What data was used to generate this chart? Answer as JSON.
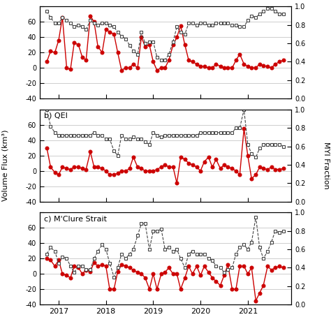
{
  "panel_a_label": "b) QEI",
  "panel_b_label": "c) M'Clure Strait",
  "ylabel_left": "Volume Flux (km³)",
  "ylabel_right": "MYI Fraction",
  "x_ticks": [
    2017,
    2018,
    2019,
    2020,
    2021
  ],
  "ylim_ab": [
    -40,
    80
  ],
  "ylim_c": [
    -40,
    80
  ],
  "right_ylim": [
    0.0,
    1.0
  ],
  "panel0_flux_x": [
    2016.75,
    2016.83,
    2016.92,
    2017.0,
    2017.08,
    2017.17,
    2017.25,
    2017.33,
    2017.42,
    2017.5,
    2017.58,
    2017.67,
    2017.75,
    2017.83,
    2017.92,
    2018.0,
    2018.08,
    2018.17,
    2018.25,
    2018.33,
    2018.42,
    2018.5,
    2018.58,
    2018.67,
    2018.75,
    2018.83,
    2018.92,
    2019.0,
    2019.08,
    2019.17,
    2019.25,
    2019.33,
    2019.42,
    2019.5,
    2019.58,
    2019.67,
    2019.75,
    2019.83,
    2019.92,
    2020.0,
    2020.08,
    2020.17,
    2020.25,
    2020.33,
    2020.42,
    2020.5,
    2020.58,
    2020.67,
    2020.75,
    2020.83,
    2020.92,
    2021.0,
    2021.08,
    2021.17,
    2021.25,
    2021.33,
    2021.42,
    2021.5,
    2021.58,
    2021.67,
    2021.75
  ],
  "panel0_flux_y": [
    8,
    22,
    20,
    36,
    66,
    0,
    -2,
    33,
    30,
    14,
    10,
    68,
    60,
    28,
    20,
    50,
    47,
    44,
    20,
    -3,
    0,
    0,
    5,
    0,
    40,
    28,
    30,
    8,
    -3,
    0,
    0,
    10,
    30,
    40,
    55,
    30,
    10,
    8,
    5,
    2,
    2,
    0,
    0,
    5,
    2,
    0,
    0,
    0,
    10,
    18,
    5,
    2,
    0,
    0,
    5,
    3,
    2,
    0,
    5,
    8,
    10
  ],
  "panel0_myi_x": [
    2016.75,
    2016.83,
    2016.92,
    2017.0,
    2017.08,
    2017.17,
    2017.25,
    2017.33,
    2017.42,
    2017.5,
    2017.58,
    2017.67,
    2017.75,
    2017.83,
    2017.92,
    2018.0,
    2018.08,
    2018.17,
    2018.25,
    2018.33,
    2018.42,
    2018.5,
    2018.58,
    2018.67,
    2018.75,
    2018.83,
    2018.92,
    2019.0,
    2019.08,
    2019.17,
    2019.25,
    2019.33,
    2019.42,
    2019.5,
    2019.58,
    2019.67,
    2019.75,
    2019.83,
    2019.92,
    2020.0,
    2020.08,
    2020.17,
    2020.25,
    2020.33,
    2020.42,
    2020.5,
    2020.58,
    2020.67,
    2020.75,
    2020.83,
    2020.92,
    2021.0,
    2021.08,
    2021.17,
    2021.25,
    2021.33,
    2021.42,
    2021.5,
    2021.58,
    2021.67,
    2021.75
  ],
  "panel0_myi_y": [
    0.95,
    0.88,
    0.82,
    0.82,
    0.88,
    0.85,
    0.82,
    0.78,
    0.8,
    0.78,
    0.75,
    0.85,
    0.82,
    0.8,
    0.82,
    0.82,
    0.8,
    0.78,
    0.72,
    0.68,
    0.65,
    0.58,
    0.52,
    0.48,
    0.72,
    0.6,
    0.62,
    0.62,
    0.45,
    0.42,
    0.42,
    0.48,
    0.62,
    0.78,
    0.72,
    0.7,
    0.82,
    0.82,
    0.8,
    0.82,
    0.82,
    0.8,
    0.8,
    0.82,
    0.82,
    0.82,
    0.82,
    0.8,
    0.8,
    0.78,
    0.78,
    0.85,
    0.9,
    0.88,
    0.92,
    0.95,
    0.98,
    0.98,
    0.95,
    0.92,
    0.92
  ],
  "panel1_flux_x": [
    2016.75,
    2016.83,
    2016.92,
    2017.0,
    2017.08,
    2017.17,
    2017.25,
    2017.33,
    2017.42,
    2017.5,
    2017.58,
    2017.67,
    2017.75,
    2017.83,
    2017.92,
    2018.0,
    2018.08,
    2018.17,
    2018.25,
    2018.33,
    2018.42,
    2018.5,
    2018.58,
    2018.67,
    2018.75,
    2018.83,
    2018.92,
    2019.0,
    2019.08,
    2019.17,
    2019.25,
    2019.33,
    2019.42,
    2019.5,
    2019.58,
    2019.67,
    2019.75,
    2019.83,
    2019.92,
    2020.0,
    2020.08,
    2020.17,
    2020.25,
    2020.33,
    2020.42,
    2020.5,
    2020.58,
    2020.67,
    2020.75,
    2020.83,
    2020.92,
    2021.0,
    2021.08,
    2021.17,
    2021.25,
    2021.33,
    2021.42,
    2021.5,
    2021.58,
    2021.67,
    2021.75
  ],
  "panel1_flux_y": [
    30,
    5,
    -2,
    -5,
    5,
    3,
    2,
    5,
    5,
    3,
    2,
    25,
    5,
    5,
    3,
    0,
    -5,
    -5,
    -3,
    0,
    0,
    3,
    18,
    5,
    3,
    0,
    0,
    0,
    2,
    5,
    8,
    5,
    5,
    -16,
    18,
    15,
    10,
    8,
    5,
    0,
    12,
    18,
    5,
    15,
    3,
    8,
    5,
    3,
    0,
    -5,
    55,
    20,
    -10,
    -5,
    5,
    3,
    2,
    5,
    2,
    2,
    3
  ],
  "panel1_myi_x": [
    2016.75,
    2016.83,
    2016.92,
    2017.0,
    2017.08,
    2017.17,
    2017.25,
    2017.33,
    2017.42,
    2017.5,
    2017.58,
    2017.67,
    2017.75,
    2017.83,
    2017.92,
    2018.0,
    2018.08,
    2018.17,
    2018.25,
    2018.33,
    2018.42,
    2018.5,
    2018.58,
    2018.67,
    2018.75,
    2018.83,
    2018.92,
    2019.0,
    2019.08,
    2019.17,
    2019.25,
    2019.33,
    2019.42,
    2019.5,
    2019.58,
    2019.67,
    2019.75,
    2019.83,
    2019.92,
    2020.0,
    2020.08,
    2020.17,
    2020.25,
    2020.33,
    2020.42,
    2020.5,
    2020.58,
    2020.67,
    2020.75,
    2020.83,
    2020.92,
    2021.0,
    2021.08,
    2021.17,
    2021.25,
    2021.33,
    2021.42,
    2021.5,
    2021.58,
    2021.67,
    2021.75
  ],
  "panel1_myi_y": [
    1.0,
    0.82,
    0.75,
    0.72,
    0.72,
    0.72,
    0.72,
    0.72,
    0.72,
    0.72,
    0.72,
    0.72,
    0.75,
    0.72,
    0.72,
    0.68,
    0.68,
    0.55,
    0.5,
    0.72,
    0.68,
    0.68,
    0.7,
    0.68,
    0.68,
    0.65,
    0.62,
    0.75,
    0.72,
    0.7,
    0.72,
    0.72,
    0.72,
    0.72,
    0.72,
    0.72,
    0.72,
    0.72,
    0.72,
    0.75,
    0.75,
    0.75,
    0.75,
    0.75,
    0.75,
    0.75,
    0.75,
    0.75,
    0.8,
    0.8,
    1.0,
    0.62,
    0.52,
    0.48,
    0.58,
    0.62,
    0.62,
    0.62,
    0.62,
    0.62,
    0.6
  ],
  "panel2_flux_x": [
    2016.75,
    2016.83,
    2016.92,
    2017.0,
    2017.08,
    2017.17,
    2017.25,
    2017.33,
    2017.42,
    2017.5,
    2017.58,
    2017.67,
    2017.75,
    2017.83,
    2017.92,
    2018.0,
    2018.08,
    2018.17,
    2018.25,
    2018.33,
    2018.42,
    2018.5,
    2018.58,
    2018.67,
    2018.75,
    2018.83,
    2018.92,
    2019.0,
    2019.08,
    2019.17,
    2019.25,
    2019.33,
    2019.42,
    2019.5,
    2019.58,
    2019.67,
    2019.75,
    2019.83,
    2019.92,
    2020.0,
    2020.08,
    2020.17,
    2020.25,
    2020.33,
    2020.42,
    2020.5,
    2020.58,
    2020.67,
    2020.75,
    2020.83,
    2020.92,
    2021.0,
    2021.08,
    2021.17,
    2021.25,
    2021.33,
    2021.42,
    2021.5,
    2021.58,
    2021.67,
    2021.75
  ],
  "panel2_flux_y": [
    20,
    18,
    10,
    18,
    0,
    -2,
    -5,
    10,
    8,
    0,
    5,
    3,
    15,
    10,
    12,
    10,
    -20,
    -20,
    3,
    12,
    10,
    8,
    5,
    2,
    0,
    -5,
    -20,
    0,
    -20,
    0,
    2,
    8,
    0,
    0,
    -20,
    -5,
    10,
    0,
    10,
    -2,
    10,
    2,
    -5,
    -10,
    -15,
    -2,
    12,
    -20,
    -20,
    10,
    10,
    0,
    8,
    -35,
    -25,
    -15,
    10,
    5,
    8,
    10,
    8
  ],
  "panel2_myi_x": [
    2016.75,
    2016.83,
    2016.92,
    2017.0,
    2017.08,
    2017.17,
    2017.25,
    2017.33,
    2017.42,
    2017.5,
    2017.58,
    2017.67,
    2017.75,
    2017.83,
    2017.92,
    2018.0,
    2018.08,
    2018.17,
    2018.25,
    2018.33,
    2018.42,
    2018.5,
    2018.58,
    2018.67,
    2018.75,
    2018.83,
    2018.92,
    2019.0,
    2019.08,
    2019.17,
    2019.25,
    2019.33,
    2019.42,
    2019.5,
    2019.58,
    2019.67,
    2019.75,
    2019.83,
    2019.92,
    2020.0,
    2020.08,
    2020.17,
    2020.25,
    2020.33,
    2020.42,
    2020.5,
    2020.58,
    2020.67,
    2020.75,
    2020.83,
    2020.92,
    2021.0,
    2021.08,
    2021.17,
    2021.25,
    2021.33,
    2021.42,
    2021.5,
    2021.58,
    2021.67,
    2021.75
  ],
  "panel2_myi_y": [
    0.55,
    0.62,
    0.58,
    0.45,
    0.52,
    0.5,
    0.42,
    0.35,
    0.42,
    0.42,
    0.38,
    0.38,
    0.5,
    0.58,
    0.65,
    0.6,
    0.45,
    0.3,
    0.4,
    0.55,
    0.5,
    0.55,
    0.6,
    0.75,
    0.88,
    0.88,
    0.6,
    0.8,
    0.8,
    0.82,
    0.6,
    0.62,
    0.58,
    0.6,
    0.5,
    0.4,
    0.55,
    0.58,
    0.55,
    0.55,
    0.55,
    0.5,
    0.48,
    0.42,
    0.4,
    0.35,
    0.38,
    0.4,
    0.55,
    0.62,
    0.65,
    0.6,
    0.68,
    0.95,
    0.62,
    0.5,
    0.58,
    0.68,
    0.8,
    0.78,
    0.8
  ],
  "flux_color": "#cc0000",
  "myi_color": "#444444",
  "flux_marker": "o",
  "myi_marker": "s",
  "background_color": "white",
  "grid_color": "#bbbbbb"
}
